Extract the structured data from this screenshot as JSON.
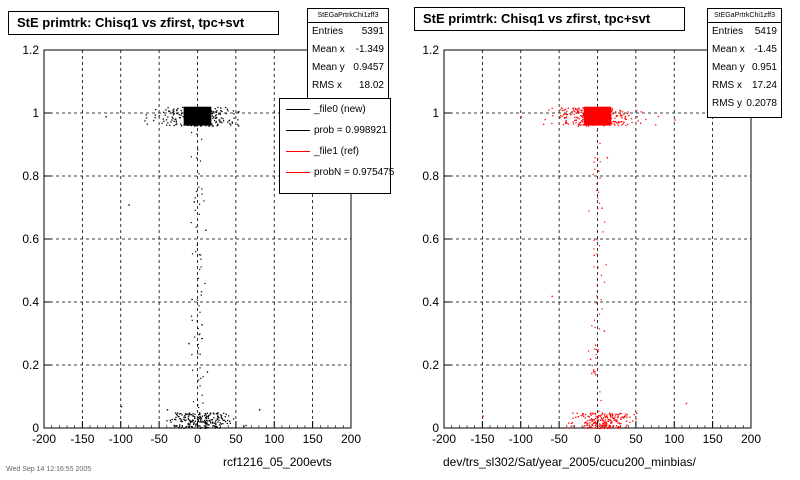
{
  "panels": [
    {
      "title": "StE primtrk: Chisq1 vs zfirst, tpc+svt",
      "xlabel": "rcf1216_05_200evts",
      "marker_color": "#000000",
      "stats": {
        "header": "StEGaPrtrkChi1zff3",
        "rows": [
          {
            "label": "Entries",
            "value": "5391"
          },
          {
            "label": "Mean x",
            "value": "-1.349"
          },
          {
            "label": "Mean y",
            "value": "0.9457"
          },
          {
            "label": "RMS x",
            "value": "18.02"
          }
        ]
      },
      "legend": [
        {
          "label": "_file0 (new)",
          "color": "#000000"
        },
        {
          "label": "prob = 0.998921",
          "color": "#000000"
        },
        {
          "label": "_file1 (ref)",
          "color": "#ff0000"
        },
        {
          "label": "probN = 0.975475",
          "color": "#ff0000"
        }
      ]
    },
    {
      "title": "StE primtrk: Chisq1 vs zfirst, tpc+svt",
      "xlabel": "dev/trs_sl302/Sat/year_2005/cucu200_minbias/",
      "marker_color": "#ff0000",
      "stats": {
        "header": "StEGaPrtrkChi1zff3",
        "rows": [
          {
            "label": "Entries",
            "value": "5419"
          },
          {
            "label": "Mean x",
            "value": "-1.45"
          },
          {
            "label": "Mean y",
            "value": "0.951"
          },
          {
            "label": "RMS x",
            "value": "17.24"
          },
          {
            "label": "RMS y",
            "value": "0.2078"
          }
        ]
      },
      "legend": []
    }
  ],
  "footer": "Wed Sep 14 12:16:55 2005",
  "chart_data": [
    {
      "type": "scatter",
      "title": "StE primtrk: Chisq1 vs zfirst, tpc+svt",
      "xlabel": "rcf1216_05_200evts",
      "ylabel": "",
      "xlim": [
        -200,
        200
      ],
      "ylim": [
        0,
        1.2
      ],
      "xticks": [
        -200,
        -150,
        -100,
        -50,
        0,
        50,
        100,
        150,
        200
      ],
      "yticks": [
        0,
        0.2,
        0.4,
        0.6,
        0.8,
        1,
        1.2
      ],
      "grid": true,
      "color": "#000000",
      "dense_core": {
        "x": [
          -18,
          18
        ],
        "y": [
          0.96,
          1.02
        ]
      },
      "band_y1": {
        "x": [
          -110,
          100
        ],
        "y": [
          0.96,
          1.02
        ]
      },
      "band_y0": {
        "x": [
          -70,
          80
        ],
        "y": [
          0.0,
          0.05
        ]
      },
      "column": {
        "x": [
          -15,
          15
        ],
        "y": [
          0.05,
          0.95
        ]
      },
      "points": [
        [
          -90,
          0.71
        ],
        [
          -100,
          0.07
        ],
        [
          -40,
          0.06
        ],
        [
          80,
          0.06
        ],
        [
          -120,
          0.99
        ],
        [
          110,
          0.98
        ],
        [
          -5,
          0.72
        ],
        [
          10,
          0.63
        ],
        [
          -8,
          0.41
        ],
        [
          5,
          0.33
        ],
        [
          12,
          0.18
        ],
        [
          -12,
          0.27
        ]
      ],
      "stats": {
        "entries": 5391,
        "mean_x": -1.349,
        "mean_y": 0.9457,
        "rms_x": 18.02
      }
    },
    {
      "type": "scatter",
      "title": "StE primtrk: Chisq1 vs zfirst, tpc+svt",
      "xlabel": "dev/trs_sl302/Sat/year_2005/cucu200_minbias/",
      "ylabel": "",
      "xlim": [
        -200,
        200
      ],
      "ylim": [
        0,
        1.2
      ],
      "xticks": [
        -200,
        -150,
        -100,
        -50,
        0,
        50,
        100,
        150,
        200
      ],
      "yticks": [
        0,
        0.2,
        0.4,
        0.6,
        0.8,
        1,
        1.2
      ],
      "grid": true,
      "color": "#ff0000",
      "dense_core": {
        "x": [
          -18,
          18
        ],
        "y": [
          0.96,
          1.02
        ]
      },
      "band_y1": {
        "x": [
          -110,
          100
        ],
        "y": [
          0.96,
          1.02
        ]
      },
      "band_y0": {
        "x": [
          -70,
          80
        ],
        "y": [
          0.0,
          0.05
        ]
      },
      "column": {
        "x": [
          -15,
          15
        ],
        "y": [
          0.05,
          0.95
        ]
      },
      "points": [
        [
          -150,
          0.04
        ],
        [
          -60,
          0.42
        ],
        [
          115,
          0.08
        ],
        [
          -100,
          0.99
        ],
        [
          100,
          0.98
        ],
        [
          5,
          0.7
        ],
        [
          -5,
          0.55
        ],
        [
          8,
          0.31
        ],
        [
          -10,
          0.22
        ],
        [
          12,
          0.86
        ]
      ],
      "stats": {
        "entries": 5419,
        "mean_x": -1.45,
        "mean_y": 0.951,
        "rms_x": 17.24,
        "rms_y": 0.2078
      }
    }
  ]
}
